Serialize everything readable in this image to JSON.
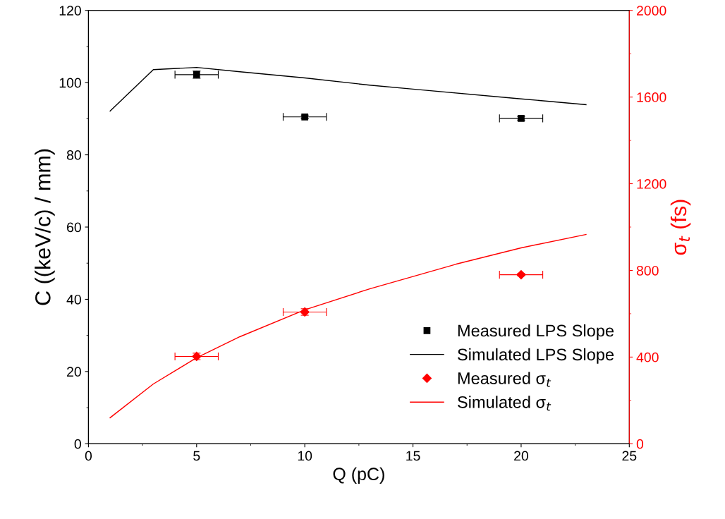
{
  "chart_data": {
    "type": "scatter",
    "xlabel": "Q (pC)",
    "ylabel": "C ((keV/c) / mm)",
    "y2label": "σ$_{t}$ (fs)",
    "xlim": [
      0,
      25
    ],
    "xticks": [
      0,
      5,
      10,
      15,
      20,
      25
    ],
    "ylim": [
      0,
      120
    ],
    "yticks": [
      0,
      20,
      40,
      60,
      80,
      100,
      120
    ],
    "y2lim": [
      0,
      2000
    ],
    "y2ticks": [
      0,
      400,
      800,
      1200,
      1600,
      2000
    ],
    "grid": false,
    "legend": "bottom right",
    "series": [
      {
        "name": "Measured LPS Slope",
        "marker": "square",
        "color": "#000000",
        "x": [
          5,
          10,
          20
        ],
        "values": [
          102.2,
          90.5,
          90.1
        ],
        "errors": [
          1,
          0.5,
          0.5
        ],
        "xerrors": [
          1,
          1,
          1
        ]
      },
      {
        "name": "Simulated LPS Slope",
        "type": "line",
        "marker": "none",
        "line_style": "solid",
        "color": "#000000",
        "x": [
          1,
          3,
          5,
          7,
          10,
          13,
          15,
          20,
          23
        ],
        "values": [
          92.1,
          103.6,
          104.2,
          103,
          101.3,
          99.3,
          98.2,
          95.5,
          93.9
        ]
      },
      {
        "name": "Measured σ$_{t}$",
        "marker": "diamond",
        "axis": "y2",
        "color": "#ff0000",
        "x": [
          5,
          10,
          20
        ],
        "values": [
          403,
          608,
          780
        ],
        "errors": [
          15,
          15,
          5
        ],
        "xerrors": [
          1,
          1,
          1
        ]
      },
      {
        "name": "Simulated σ$_{t}$",
        "type": "line",
        "marker": "none",
        "line_style": "solid",
        "axis": "y2",
        "color": "#ff0000",
        "x": [
          1,
          3,
          5,
          7,
          10,
          13,
          17,
          20,
          23
        ],
        "values": [
          120,
          276,
          397,
          494,
          618,
          715,
          829,
          904,
          966
        ]
      }
    ]
  }
}
